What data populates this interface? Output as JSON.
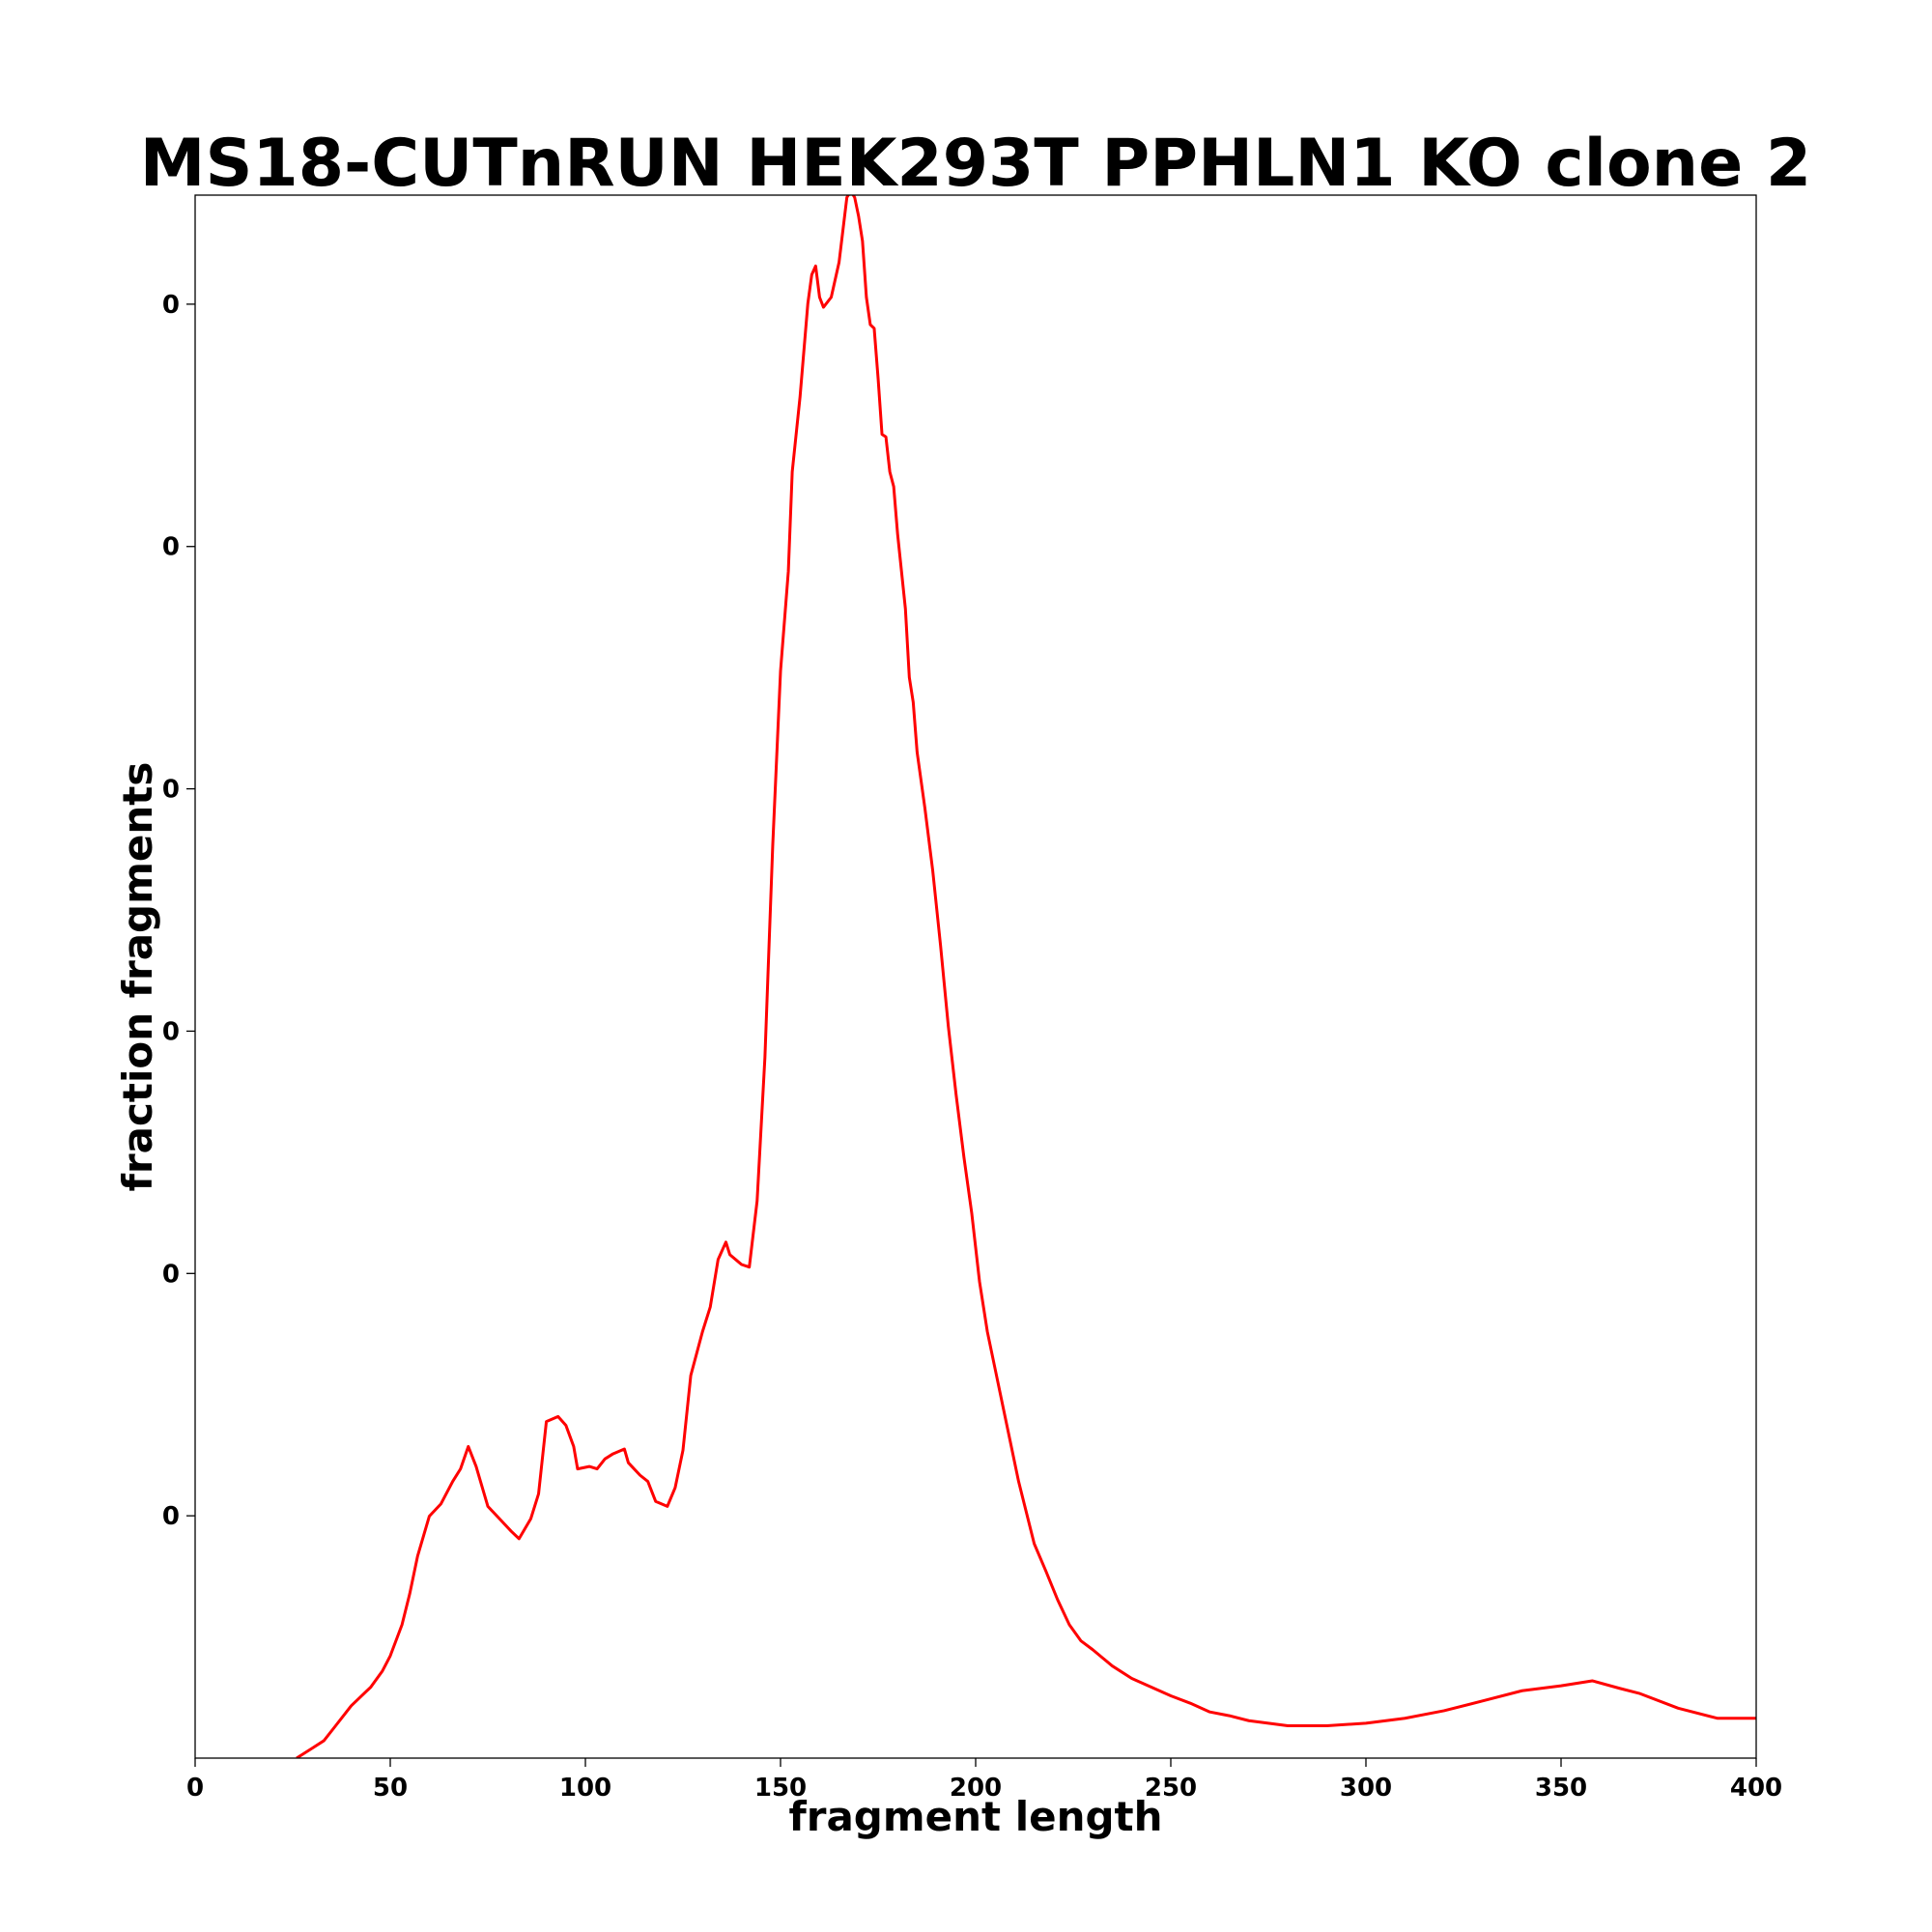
{
  "chart_data": {
    "type": "line",
    "title": "MS18-CUTnRUN HEK293T PPHLN1 KO clone 2",
    "xlabel": "fragment length",
    "ylabel": "fraction fragments",
    "color": "#ff0000",
    "x": [
      26,
      30,
      33,
      36,
      40,
      45,
      48,
      50,
      53,
      55,
      57,
      60,
      63,
      66,
      68,
      70,
      72,
      75,
      78,
      81,
      83,
      86,
      88,
      90,
      93,
      95,
      97,
      98,
      101,
      103,
      105,
      107,
      110,
      111,
      114,
      116,
      118,
      121,
      123,
      125,
      127,
      130,
      132,
      134,
      136,
      137,
      140,
      142,
      144,
      146,
      148,
      150,
      152,
      153,
      155,
      157,
      158,
      159,
      160,
      161,
      163,
      165,
      167,
      168,
      169,
      170,
      171,
      172,
      173,
      174,
      175,
      176,
      177,
      178,
      179,
      180,
      182,
      183,
      184,
      185,
      187,
      189,
      191,
      193,
      195,
      197,
      199,
      201,
      203,
      205,
      207,
      209,
      211,
      213,
      215,
      218,
      221,
      224,
      227,
      230,
      235,
      240,
      245,
      250,
      255,
      260,
      265,
      270,
      275,
      280,
      290,
      300,
      310,
      320,
      330,
      340,
      350,
      358,
      365,
      370,
      380,
      390,
      400
    ],
    "values": [
      0,
      8.2e-05,
      0.000144,
      0.000267,
      0.000432,
      0.000586,
      0.00072,
      0.000844,
      0.0011,
      0.001358,
      0.001667,
      0.001996,
      0.002099,
      0.002284,
      0.002387,
      0.002572,
      0.002407,
      0.002078,
      0.001975,
      0.001872,
      0.001811,
      0.001975,
      0.002181,
      0.002778,
      0.002819,
      0.002747,
      0.002572,
      0.002387,
      0.002407,
      0.002387,
      0.002469,
      0.00251,
      0.002551,
      0.002438,
      0.002335,
      0.002284,
      0.002119,
      0.002078,
      0.002232,
      0.002541,
      0.003158,
      0.003519,
      0.003724,
      0.004115,
      0.004259,
      0.004156,
      0.004074,
      0.004053,
      0.004599,
      0.005782,
      0.007531,
      0.008971,
      0.009794,
      0.010617,
      0.011235,
      0.012006,
      0.012243,
      0.012315,
      0.012058,
      0.011975,
      0.012058,
      0.012346,
      0.012881,
      0.012932,
      0.012881,
      0.012726,
      0.012521,
      0.012058,
      0.011831,
      0.0118,
      0.011389,
      0.010926,
      0.010905,
      0.010617,
      0.010494,
      0.010103,
      0.009486,
      0.00892,
      0.008714,
      0.008302,
      0.007839,
      0.007325,
      0.006708,
      0.006039,
      0.005473,
      0.004959,
      0.004496,
      0.00393,
      0.003519,
      0.00321,
      0.002901,
      0.002593,
      0.002284,
      0.002027,
      0.00177,
      0.001543,
      0.001307,
      0.001101,
      0.000967,
      0.000895,
      0.000761,
      0.000658,
      0.000586,
      0.000514,
      0.000453,
      0.000381,
      0.00035,
      0.000309,
      0.000288,
      0.000267,
      0.000267,
      0.000288,
      0.000329,
      0.000391,
      0.000473,
      0.000556,
      0.000597,
      0.000638,
      0.000576,
      0.000535,
      0.000412,
      0.000329,
      0.000329
    ],
    "xlim": [
      0,
      400
    ],
    "xticks": [
      0,
      50,
      100,
      150,
      200,
      250,
      300,
      350,
      400
    ],
    "ylim": [
      0,
      0.0129
    ],
    "yticks": [
      {
        "value": 0.002,
        "label": "0"
      },
      {
        "value": 0.004,
        "label": "0"
      },
      {
        "value": 0.006,
        "label": "0"
      },
      {
        "value": 0.008,
        "label": "0"
      },
      {
        "value": 0.01,
        "label": "0"
      },
      {
        "value": 0.012,
        "label": "0"
      }
    ]
  }
}
